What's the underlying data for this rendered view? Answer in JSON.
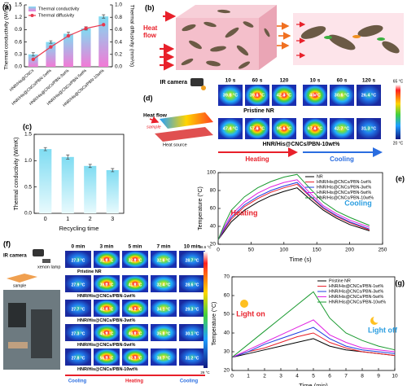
{
  "chart_data": [
    {
      "panel": "(a)",
      "type": "bar",
      "categories": [
        "HNR/His@CNCs",
        "HNR/His@CNCs/PBN-1wt%",
        "HNR/His@CNCs/PBN-3wt%",
        "HNR/His@CNCs/PBN-5wt%",
        "HNR/His@CNCs/PBN-10wt%"
      ],
      "series": [
        {
          "name": "Thermal conductivity",
          "color": "#7fdcf2",
          "values": [
            0.3,
            0.6,
            0.8,
            0.93,
            1.22
          ],
          "errors": [
            0.04,
            0.03,
            0.04,
            0.04,
            0.04
          ]
        },
        {
          "name": "Thermal diffusivity",
          "type": "line",
          "axis": "y2",
          "color": "#e8384f",
          "values": [
            0.12,
            0.32,
            0.5,
            0.62,
            0.68
          ]
        }
      ],
      "ylabel": "Thermal conductivity (W/mK)",
      "y2label": "Thermal diffusivity (mm²/s)",
      "ylim": [
        0,
        1.5
      ],
      "yticks": [
        {
          "value": 0,
          "label": "0.0"
        },
        0.3,
        0.6,
        0.9,
        1.2,
        1.5
      ],
      "y2lim": [
        0,
        1
      ],
      "y2ticks": [
        {
          "value": 0,
          "label": "0.0"
        },
        0.2,
        0.4,
        0.6,
        0.8,
        {
          "value": 1,
          "label": "1.0"
        }
      ],
      "legend": "upper left"
    },
    {
      "panel": "(c)",
      "type": "bar",
      "categories": [
        "0",
        "1",
        "2",
        "3"
      ],
      "values": [
        1.22,
        1.07,
        0.9,
        0.82
      ],
      "errors": [
        0.03,
        0.04,
        0.03,
        0.03
      ],
      "color": "#7fdcf2",
      "xlabel": "Recycling time",
      "ylabel": "Thermal conductivity (W/mK)",
      "ylim": [
        0,
        1.5
      ],
      "yticks": [
        {
          "value": 0,
          "label": "0.0"
        },
        0.5,
        {
          "value": 1,
          "label": "1.0"
        },
        1.5
      ]
    },
    {
      "panel": "(e)",
      "type": "line",
      "x": [
        0,
        10,
        20,
        40,
        60,
        80,
        100,
        120,
        140,
        160,
        180,
        200,
        230
      ],
      "series": [
        {
          "name": "NR",
          "color": "#000000",
          "values": [
            25,
            35,
            45,
            58,
            67,
            74,
            79,
            83,
            70,
            58,
            49,
            42,
            35
          ]
        },
        {
          "name": "HNR/His@CNCs/PBN-1wt%",
          "color": "#e8202a",
          "values": [
            25,
            37,
            48,
            62,
            71,
            78,
            83,
            87,
            73,
            60,
            51,
            44,
            36
          ]
        },
        {
          "name": "HNR/His@CNCs/PBN-3wt%",
          "color": "#1f3fe0",
          "values": [
            25,
            38,
            50,
            64,
            73,
            80,
            85,
            89,
            74,
            61,
            52,
            45,
            37
          ]
        },
        {
          "name": "HNR/His@CNCs/PBN-5wt%",
          "color": "#e020e0",
          "values": [
            25,
            40,
            53,
            67,
            77,
            84,
            89,
            92,
            77,
            63,
            54,
            47,
            39
          ]
        },
        {
          "name": "HNR/His@CNCs/PBN-10wt%",
          "color": "#1a9a30",
          "values": [
            25,
            43,
            58,
            73,
            83,
            90,
            95,
            98,
            82,
            67,
            57,
            50,
            41
          ]
        }
      ],
      "xlabel": "Time (s)",
      "ylabel": "Temperature (°C)",
      "xlim": [
        0,
        250
      ],
      "xticks": [
        0,
        50,
        100,
        150,
        200,
        250
      ],
      "ylim": [
        20,
        100
      ],
      "yticks": [
        20,
        40,
        60,
        80,
        100
      ],
      "annotations": [
        {
          "text": "Heating",
          "color": "#e8202a"
        },
        {
          "text": "Cooling",
          "color": "#2a9de0"
        }
      ],
      "legend": "upper right"
    },
    {
      "panel": "(g)",
      "type": "line",
      "x": [
        0,
        1,
        2,
        3,
        4,
        5,
        6,
        7,
        8,
        9,
        10
      ],
      "series": [
        {
          "name": "Pristine NR",
          "color": "#000000",
          "values": [
            27,
            29,
            31,
            33,
            35,
            37,
            33,
            31,
            30,
            29,
            28
          ]
        },
        {
          "name": "HNR/His@CNCs/PBN-1wt%",
          "color": "#e8202a",
          "values": [
            27,
            30,
            32,
            35,
            38,
            40,
            35,
            32,
            30,
            29,
            28
          ]
        },
        {
          "name": "HNR/His@CNCs/PBN-3wt%",
          "color": "#1f3fe0",
          "values": [
            27,
            30,
            34,
            37,
            40,
            43,
            37,
            33,
            31,
            30,
            29
          ]
        },
        {
          "name": "HNR/His@CNCs/PBN-5wt%",
          "color": "#e020e0",
          "values": [
            27,
            31,
            35,
            39,
            43,
            47,
            39,
            35,
            32,
            31,
            30
          ]
        },
        {
          "name": "HNR/His@CNCs/PBN-10wt%",
          "color": "#1a9a30",
          "values": [
            27,
            34,
            41,
            48,
            55,
            62,
            48,
            40,
            36,
            33,
            31
          ]
        }
      ],
      "xlabel": "Time (min)",
      "ylabel": "Temperature (°C)",
      "xlim": [
        0,
        10
      ],
      "xticks": [
        0,
        1,
        2,
        3,
        4,
        5,
        6,
        7,
        8,
        9,
        10
      ],
      "ylim": [
        20,
        70
      ],
      "yticks": [
        20,
        30,
        40,
        50,
        60,
        70
      ],
      "annotations": [
        {
          "text": "Light on",
          "color": "#e8202a"
        },
        {
          "text": "Light off",
          "color": "#2a9de0"
        }
      ],
      "legend": "upper right"
    }
  ],
  "panel_b": {
    "panel": "(b)",
    "heat_flow": "Heat flow"
  },
  "panel_d": {
    "panel": "(d)",
    "camera": "IR camera",
    "times": [
      "10 s",
      "60 s",
      "120",
      "10 s",
      "60 s",
      "120 s"
    ],
    "rows": [
      {
        "name": "Pristine NR",
        "temps": [
          "39.8 °C",
          "39.1 °C",
          "42.3 °C",
          "40 °C",
          "30.6 °C",
          "26.4 °C"
        ]
      },
      {
        "name": "HNR/His@CNCs/PBN-10wt%",
        "temps": [
          "47.4 °C",
          "57.8 °C",
          "95.6 °C",
          "67.6 °C",
          "42.7 °C",
          "31.3 °C"
        ]
      }
    ],
    "heating": "Heating",
    "cooling": "Cooling",
    "heat_flow": "Heat flow",
    "sample": "sample",
    "heat_source": "Heat source",
    "scale_max": "65 °C",
    "scale_min": "20 °C"
  },
  "panel_f": {
    "panel": "(f)",
    "camera": "IR camera",
    "lamp": "xenon lamp",
    "sample": "sample",
    "times": [
      "0 min",
      "3 min",
      "5 min",
      "7 min",
      "10 min"
    ],
    "rows": [
      {
        "name": "Pristine NR",
        "temps": [
          "27.3 °C",
          "31.6 °C",
          "32.8 °C",
          "32.6 °C",
          "28.7 °C"
        ]
      },
      {
        "name": "HNR/His@CNCs/PBN-1wt%",
        "temps": [
          "27.9 °C",
          "39.0 °C",
          "41.6 °C",
          "32.4 °C",
          "28.6 °C"
        ]
      },
      {
        "name": "HNR/His@CNCs/PBN-3wt%",
        "temps": [
          "27.7 °C",
          "42.4 °C",
          "46.2 °C",
          "34.1 °C",
          "29.3 °C"
        ]
      },
      {
        "name": "HNR/His@CNCs/PBN-5wt%",
        "temps": [
          "27.3 °C",
          "45.9 °C",
          "49.6 °C",
          "35.8 °C",
          "30.1 °C"
        ]
      },
      {
        "name": "HNR/His@CNCs/PBN-10wt%",
        "temps": [
          "27.8 °C",
          "56.3 °C",
          "62.3 °C",
          "38.7 °C",
          "31.2 °C"
        ]
      }
    ],
    "scale_max": "98.6 °C",
    "scale_min": "26 °C",
    "phases": [
      "Cooling",
      "Heating",
      "Cooling"
    ]
  }
}
